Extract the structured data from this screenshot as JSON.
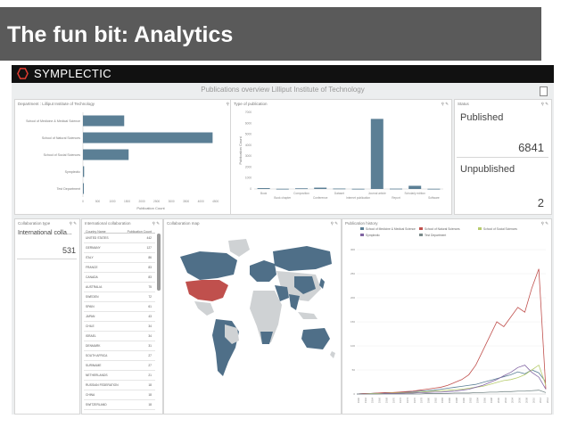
{
  "slide": {
    "title": "The fun bit: Analytics"
  },
  "brand": {
    "name": "SYMPLECTIC",
    "logo_icon": "hexagon-icon",
    "accent": "#e03c31"
  },
  "page": {
    "title": "Publications overview  Lilliput Institute of Technology"
  },
  "panels": {
    "department": {
      "title": "Department : Lilliput Institute of Technology"
    },
    "type": {
      "title": "Type of publication"
    },
    "status": {
      "title": "Status"
    },
    "collab_type": {
      "title": "Collaboration type"
    },
    "intl": {
      "title": "International collaboration"
    },
    "collab_map": {
      "title": "Collaboration map"
    },
    "history": {
      "title": "Publication history"
    }
  },
  "status": {
    "published_label": "Published",
    "published_value": "6841",
    "unpublished_label": "Unpublished",
    "unpublished_value": "2"
  },
  "collab": {
    "label": "International colla...",
    "value": "531"
  },
  "intl_table": {
    "headers": [
      "Country Name",
      "Publication Count"
    ],
    "rows": [
      [
        "UNITED STATES",
        "442"
      ],
      [
        "GERMANY",
        "127"
      ],
      [
        "ITALY",
        "86"
      ],
      [
        "FRANCE",
        "83"
      ],
      [
        "CANADA",
        "83"
      ],
      [
        "AUSTRALIA",
        "75"
      ],
      [
        "SWEDEN",
        "72"
      ],
      [
        "SPAIN",
        "61"
      ],
      [
        "JAPAN",
        "43"
      ],
      [
        "CHILE",
        "34"
      ],
      [
        "ISRAEL",
        "34"
      ],
      [
        "DENMARK",
        "31"
      ],
      [
        "SOUTH AFRICA",
        "27"
      ],
      [
        "SURINAME",
        "27"
      ],
      [
        "NETHERLANDS",
        "21"
      ],
      [
        "RUSSIAN FEDERATION",
        "18"
      ],
      [
        "CHINA",
        "18"
      ],
      [
        "SWITZERLAND",
        "18"
      ]
    ]
  },
  "chart_data": [
    {
      "type": "bar",
      "orientation": "horizontal",
      "categories": [
        "School of Medicine & Medical Science",
        "School of Natural Sciences",
        "School of Social Sciences",
        "Symplectic",
        "Test Department"
      ],
      "values": [
        1400,
        4400,
        1550,
        40,
        10
      ],
      "xlabel": "Publication Count",
      "xlim": [
        0,
        4600
      ],
      "color": "#5b7f95"
    },
    {
      "type": "bar",
      "categories": [
        "Book",
        "Book chapter",
        "Composition",
        "Conference",
        "Dataset",
        "Internet publication",
        "Journal article",
        "Report",
        "Scholarly edition",
        "Software"
      ],
      "values": [
        80,
        20,
        60,
        120,
        40,
        20,
        6400,
        30,
        290,
        20
      ],
      "ylabel": "Publication Count",
      "ylim": [
        0,
        7000
      ],
      "color": "#5b7f95"
    },
    {
      "type": "line",
      "legend_position": "top",
      "series_colors": [
        "#5b7f95",
        "#c0504d",
        "#b7cc6d",
        "#8064a2",
        "#7a8a8a"
      ],
      "x": [
        1960,
        1962,
        1964,
        1966,
        1968,
        1970,
        1972,
        1974,
        1976,
        1978,
        1980,
        1982,
        1984,
        1986,
        1988,
        1990,
        1992,
        1994,
        1996,
        1998,
        2000,
        2002,
        2004,
        2006,
        2008,
        2010,
        2012,
        2014
      ],
      "series": [
        {
          "name": "School of Medicine & Medical Science",
          "values": [
            0,
            1,
            1,
            2,
            2,
            3,
            3,
            4,
            5,
            6,
            7,
            8,
            10,
            12,
            14,
            16,
            18,
            20,
            24,
            28,
            32,
            36,
            40,
            46,
            42,
            50,
            44,
            25
          ]
        },
        {
          "name": "School of Natural Sciences",
          "values": [
            0,
            1,
            1,
            2,
            3,
            3,
            4,
            5,
            6,
            8,
            10,
            12,
            14,
            18,
            24,
            30,
            40,
            60,
            90,
            120,
            150,
            140,
            160,
            180,
            170,
            220,
            260,
            10
          ]
        },
        {
          "name": "School of Social Sciences",
          "values": [
            0,
            0,
            1,
            1,
            1,
            2,
            2,
            3,
            3,
            4,
            5,
            6,
            7,
            8,
            9,
            10,
            12,
            14,
            16,
            20,
            24,
            28,
            30,
            34,
            40,
            50,
            60,
            18
          ]
        },
        {
          "name": "Symplectic",
          "values": [
            0,
            0,
            0,
            0,
            1,
            1,
            1,
            2,
            2,
            3,
            3,
            4,
            4,
            5,
            6,
            8,
            10,
            14,
            18,
            24,
            30,
            38,
            45,
            55,
            60,
            45,
            35,
            10
          ]
        },
        {
          "name": "Test Department",
          "values": [
            0,
            0,
            0,
            0,
            0,
            0,
            0,
            0,
            0,
            0,
            1,
            1,
            1,
            1,
            2,
            2,
            2,
            3,
            3,
            4,
            4,
            5,
            5,
            6,
            6,
            7,
            8,
            3
          ]
        }
      ]
    }
  ],
  "map": {
    "highlight_color": "#c0504d",
    "collab_color": "#4f6f88",
    "base_color": "#cfd2d4"
  }
}
